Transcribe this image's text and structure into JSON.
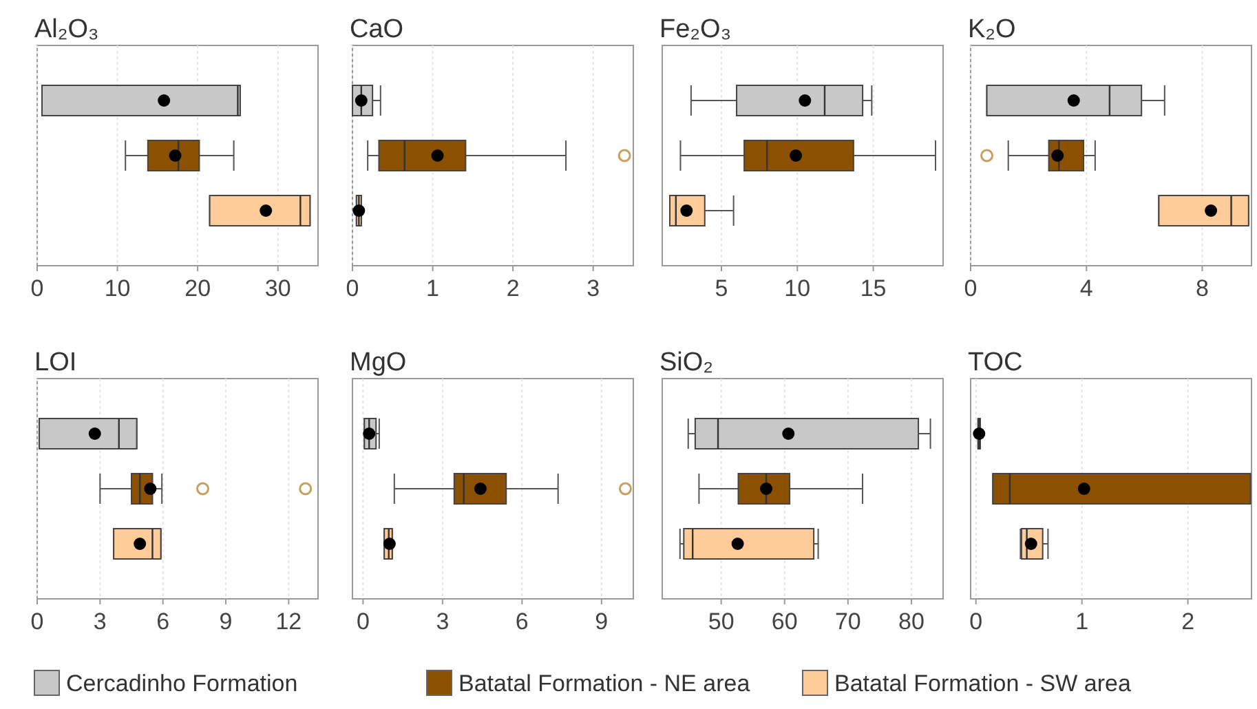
{
  "chart_data": [
    {
      "type": "box",
      "title": "Al₂O₃",
      "orientation": "horizontal",
      "categories": [
        null,
        null,
        null
      ],
      "xlim": [
        0,
        35
      ],
      "xticks": [
        0,
        10,
        20,
        30
      ],
      "grid": "x",
      "legend": "bottom",
      "series": [
        {
          "name": "Cercadinho Formation",
          "color": "#c8c8c8",
          "boxes": [
            {
              "low": 0.6,
              "q1": 0.6,
              "median": 25,
              "q3": 25.3,
              "high": 25.3,
              "mean": 15.8
            },
            null,
            null
          ]
        },
        {
          "name": "Batatal Formation - NE area",
          "color": "#8b5000",
          "boxes": [
            null,
            {
              "low": 11,
              "q1": 13.8,
              "median": 17.6,
              "q3": 20.2,
              "high": 24.5,
              "mean": 17.2
            },
            null
          ]
        },
        {
          "name": "Batatal Formation - SW area",
          "color": "#ffcc99",
          "boxes": [
            null,
            null,
            {
              "low": 21.5,
              "q1": 21.5,
              "median": 32.8,
              "q3": 34,
              "high": 34,
              "mean": 28.5
            }
          ]
        }
      ]
    },
    {
      "type": "box",
      "title": "CaO",
      "orientation": "horizontal",
      "categories": [
        null,
        null,
        null
      ],
      "xlim": [
        0,
        3.5
      ],
      "xticks": [
        0,
        1,
        2,
        3
      ],
      "grid": "x",
      "series": [
        {
          "color": "#c8c8c8",
          "boxes": [
            {
              "low": 0,
              "q1": 0,
              "median": 0.11,
              "q3": 0.25,
              "high": 0.35,
              "mean": 0.11
            },
            null,
            null
          ]
        },
        {
          "color": "#8b5000",
          "boxes": [
            null,
            {
              "low": 0.19,
              "q1": 0.33,
              "median": 0.65,
              "q3": 1.41,
              "high": 2.66,
              "mean": 1.06,
              "outliers": [
                3.39
              ]
            },
            null
          ]
        },
        {
          "color": "#ffcc99",
          "boxes": [
            null,
            null,
            {
              "low": 0.05,
              "q1": 0.05,
              "median": 0.08,
              "q3": 0.11,
              "high": 0.11,
              "mean": 0.08
            }
          ]
        }
      ]
    },
    {
      "type": "box",
      "title": "Fe₂O₃",
      "orientation": "horizontal",
      "categories": [
        null,
        null,
        null
      ],
      "xlim": [
        1.1,
        19.6
      ],
      "xticks": [
        5,
        10,
        15
      ],
      "grid": "x",
      "series": [
        {
          "color": "#c8c8c8",
          "boxes": [
            {
              "low": 3,
              "q1": 6,
              "median": 11.8,
              "q3": 14.3,
              "high": 14.9,
              "mean": 10.5
            },
            null,
            null
          ]
        },
        {
          "color": "#8b5000",
          "boxes": [
            null,
            {
              "low": 2.3,
              "q1": 6.5,
              "median": 8,
              "q3": 13.7,
              "high": 19.1,
              "mean": 9.9
            },
            null
          ]
        },
        {
          "color": "#ffcc99",
          "boxes": [
            null,
            null,
            {
              "low": 1.6,
              "q1": 1.6,
              "median": 2,
              "q3": 3.9,
              "high": 5.8,
              "mean": 2.7
            }
          ]
        }
      ]
    },
    {
      "type": "box",
      "title": "K₂O",
      "orientation": "horizontal",
      "categories": [
        null,
        null,
        null
      ],
      "xlim": [
        0,
        9.7
      ],
      "xticks": [
        0,
        4,
        8
      ],
      "grid": "x",
      "series": [
        {
          "color": "#c8c8c8",
          "boxes": [
            {
              "low": 0.56,
              "q1": 0.56,
              "median": 4.8,
              "q3": 5.9,
              "high": 6.7,
              "mean": 3.56
            },
            null,
            null
          ]
        },
        {
          "color": "#8b5000",
          "boxes": [
            null,
            {
              "low": 1.3,
              "q1": 2.7,
              "median": 3.05,
              "q3": 3.9,
              "high": 4.3,
              "mean": 3,
              "outliers": [
                0.56
              ]
            },
            null
          ]
        },
        {
          "color": "#ffcc99",
          "boxes": [
            null,
            null,
            {
              "low": 6.5,
              "q1": 6.5,
              "median": 9,
              "q3": 9.6,
              "high": 9.6,
              "mean": 8.3
            }
          ]
        }
      ]
    },
    {
      "type": "box",
      "title": "LOI",
      "orientation": "horizontal",
      "categories": [
        null,
        null,
        null
      ],
      "xlim": [
        0,
        13.4
      ],
      "xticks": [
        0,
        3,
        6,
        9,
        12
      ],
      "grid": "x",
      "series": [
        {
          "color": "#c8c8c8",
          "boxes": [
            {
              "low": 0.1,
              "q1": 0.1,
              "median": 3.9,
              "q3": 4.75,
              "high": 4.75,
              "mean": 2.75
            },
            null,
            null
          ]
        },
        {
          "color": "#8b5000",
          "boxes": [
            null,
            {
              "low": 3,
              "q1": 4.5,
              "median": 4.9,
              "q3": 5.5,
              "high": 5.95,
              "mean": 5.4,
              "outliers": [
                7.9,
                12.8
              ]
            },
            null
          ]
        },
        {
          "color": "#ffcc99",
          "boxes": [
            null,
            null,
            {
              "low": 3.65,
              "q1": 3.65,
              "median": 5.5,
              "q3": 5.9,
              "high": 5.9,
              "mean": 4.9
            }
          ]
        }
      ]
    },
    {
      "type": "box",
      "title": "MgO",
      "orientation": "horizontal",
      "categories": [
        null,
        null,
        null
      ],
      "xlim": [
        -0.4,
        10.2
      ],
      "xticks": [
        0,
        3,
        6,
        9
      ],
      "grid": "x",
      "series": [
        {
          "color": "#c8c8c8",
          "boxes": [
            {
              "low": 0.05,
              "q1": 0.05,
              "median": 0.23,
              "q3": 0.49,
              "high": 0.61,
              "mean": 0.23
            },
            null,
            null
          ]
        },
        {
          "color": "#8b5000",
          "boxes": [
            null,
            {
              "low": 1.18,
              "q1": 3.44,
              "median": 3.8,
              "q3": 5.4,
              "high": 7.36,
              "mean": 4.43,
              "outliers": [
                9.9
              ]
            },
            null
          ]
        },
        {
          "color": "#ffcc99",
          "boxes": [
            null,
            null,
            {
              "low": 0.8,
              "q1": 0.8,
              "median": 0.97,
              "q3": 1.1,
              "high": 1.1,
              "mean": 1
            }
          ]
        }
      ]
    },
    {
      "type": "box",
      "title": "SiO₂",
      "orientation": "horizontal",
      "categories": [
        null,
        null,
        null
      ],
      "xlim": [
        40.7,
        85
      ],
      "xticks": [
        50,
        60,
        70,
        80
      ],
      "grid": "x",
      "series": [
        {
          "color": "#c8c8c8",
          "boxes": [
            {
              "low": 44.8,
              "q1": 45.9,
              "median": 49.5,
              "q3": 81.1,
              "high": 83,
              "mean": 60.6
            },
            null,
            null
          ]
        },
        {
          "color": "#8b5000",
          "boxes": [
            null,
            {
              "low": 46.5,
              "q1": 52.7,
              "median": 57.1,
              "q3": 60.8,
              "high": 72.3,
              "mean": 57.1
            },
            null
          ]
        },
        {
          "color": "#ffcc99",
          "boxes": [
            null,
            null,
            {
              "low": 43.5,
              "q1": 44.1,
              "median": 45.5,
              "q3": 64.6,
              "high": 65.3,
              "mean": 52.6
            }
          ]
        }
      ]
    },
    {
      "type": "box",
      "title": "TOC",
      "orientation": "horizontal",
      "categories": [
        null,
        null,
        null
      ],
      "xlim": [
        -0.05,
        2.6
      ],
      "xticks": [
        0,
        1,
        2
      ],
      "grid": "x",
      "series": [
        {
          "color": "#c8c8c8",
          "boxes": [
            {
              "low": 0.02,
              "q1": 0.02,
              "median": 0.03,
              "q3": 0.04,
              "high": 0.04,
              "mean": 0.03
            },
            null,
            null
          ]
        },
        {
          "color": "#8b5000",
          "boxes": [
            null,
            {
              "low": 0.16,
              "q1": 0.16,
              "median": 0.32,
              "q3": 2.59,
              "high": 2.59,
              "mean": 1.02
            },
            null
          ]
        },
        {
          "color": "#ffcc99",
          "boxes": [
            null,
            null,
            {
              "low": 0.42,
              "q1": 0.43,
              "median": 0.48,
              "q3": 0.63,
              "high": 0.68,
              "mean": 0.52
            }
          ]
        }
      ]
    }
  ]
}
